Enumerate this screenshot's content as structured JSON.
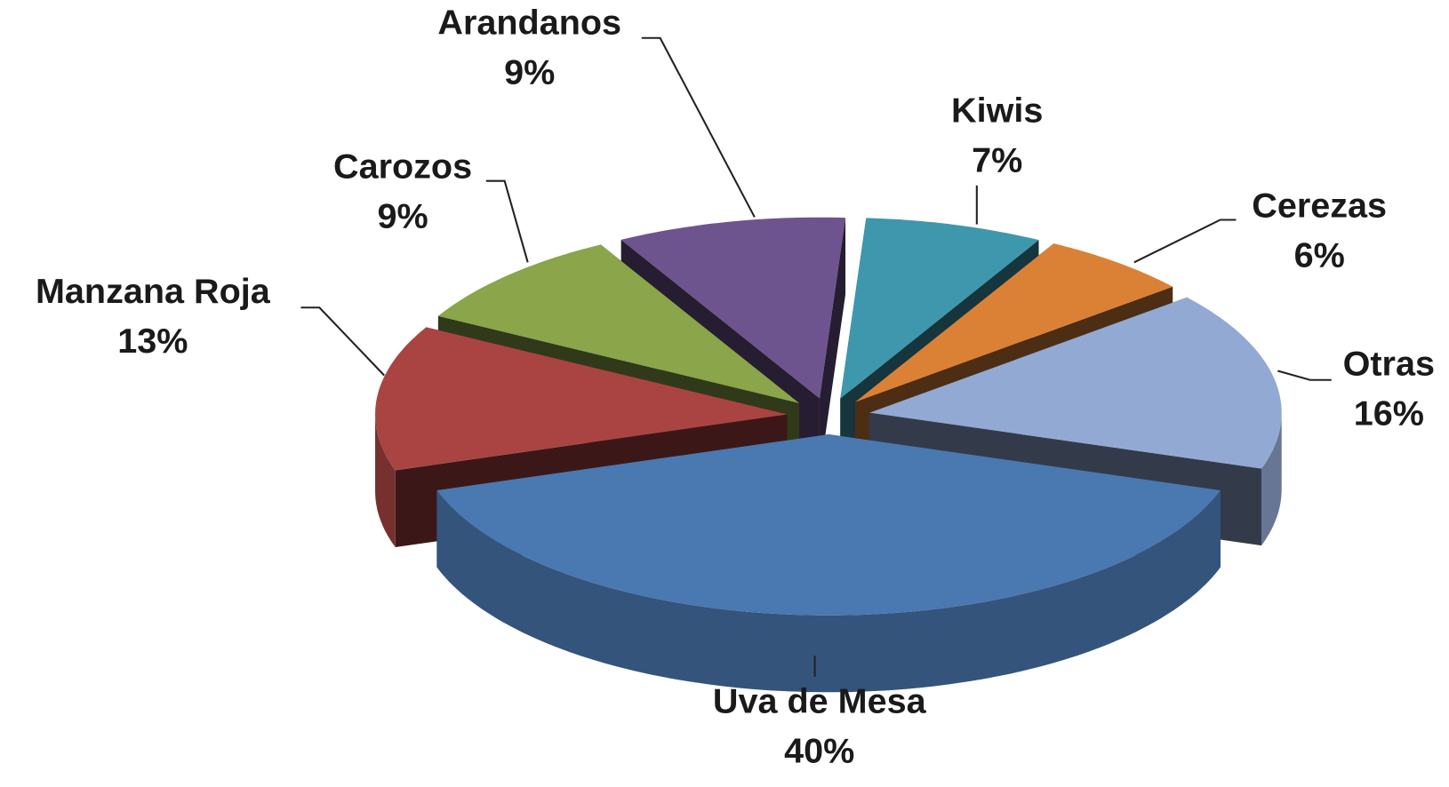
{
  "chart_data": {
    "type": "pie",
    "categories": [
      "Uva de Mesa",
      "Manzana Roja",
      "Carozos",
      "Arandanos",
      "Kiwis",
      "Cerezas",
      "Otras"
    ],
    "values": [
      40,
      13,
      9,
      9,
      7,
      6,
      16
    ],
    "value_labels": [
      "40%",
      "13%",
      "9%",
      "9%",
      "7%",
      "6%",
      "16%"
    ],
    "colors": [
      "#4a78b0",
      "#a94442",
      "#8aa54a",
      "#6e548f",
      "#3f97ae",
      "#db8136",
      "#92a9d4"
    ]
  }
}
